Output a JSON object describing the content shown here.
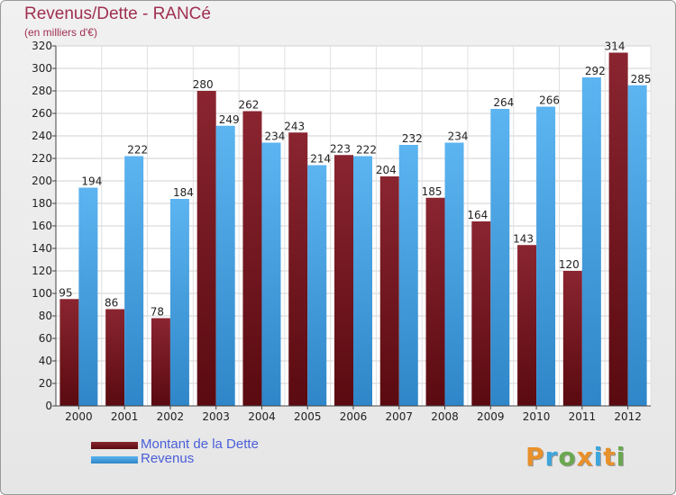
{
  "title": "Revenus/Dette - RANCé",
  "subtitle": "(en milliers d'€)",
  "logo": {
    "text": "Proxiti",
    "letter_colors": [
      "#e8902a",
      "#3da5dd",
      "#6aa84f",
      "#e8902a",
      "#3da5dd",
      "#e8902a",
      "#6aa84f"
    ]
  },
  "colors": {
    "series_dette": "#7a1620",
    "series_revenus": "#4aa3e6",
    "legend_text": "#4a5ed8",
    "title": "#a03050"
  },
  "chart_data": {
    "type": "bar",
    "categories": [
      "2000",
      "2001",
      "2002",
      "2003",
      "2004",
      "2005",
      "2006",
      "2007",
      "2008",
      "2009",
      "2010",
      "2011",
      "2012"
    ],
    "series": [
      {
        "name": "Montant de la Dette",
        "values": [
          95,
          86,
          78,
          280,
          262,
          243,
          223,
          204,
          185,
          164,
          143,
          120,
          314
        ]
      },
      {
        "name": "Revenus",
        "values": [
          194,
          222,
          184,
          249,
          234,
          214,
          222,
          232,
          234,
          264,
          266,
          292,
          285
        ]
      }
    ],
    "ylim": [
      0,
      320
    ],
    "yticks": [
      0,
      20,
      40,
      60,
      80,
      100,
      120,
      140,
      160,
      180,
      200,
      220,
      240,
      260,
      280,
      300,
      320
    ],
    "grid": true,
    "legend": "bottom-left"
  }
}
